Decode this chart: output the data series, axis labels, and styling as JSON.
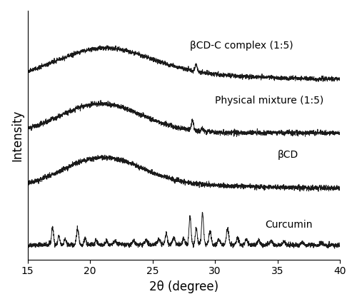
{
  "xlabel": "2θ (degree)",
  "ylabel": "Intensity",
  "xlim": [
    15,
    40
  ],
  "x_ticks": [
    15,
    20,
    25,
    30,
    35,
    40
  ],
  "labels": [
    "Curcumin",
    "βCD",
    "Physical mixture (1:5)",
    "βCD-C complex (1:5)"
  ],
  "line_color": "#1a1a1a",
  "line_width": 0.7,
  "background_color": "#ffffff",
  "label_fontsize": 10,
  "axis_label_fontsize": 12,
  "tick_fontsize": 10,
  "figsize": [
    5.0,
    4.26
  ],
  "dpi": 100
}
